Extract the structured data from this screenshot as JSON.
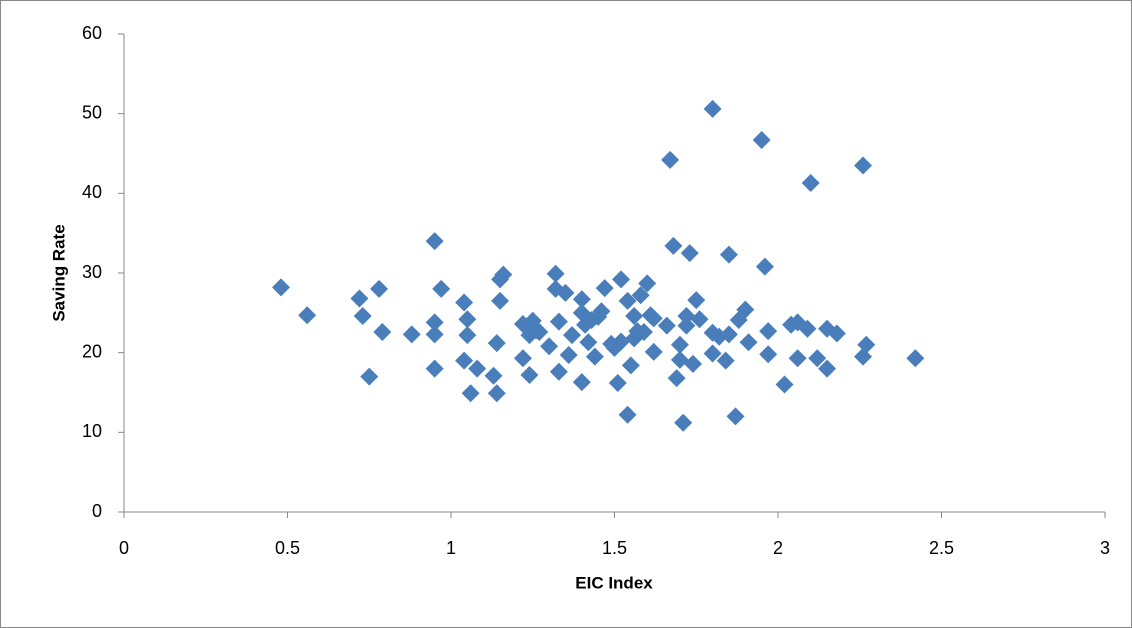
{
  "chart_data": {
    "type": "scatter",
    "x_label": "EIC Index",
    "y_label": "Saving Rate",
    "color": "#4a7ebb",
    "marker": "diamond",
    "grid": false,
    "xlim": [
      0,
      3
    ],
    "xticks": [
      0,
      0.5,
      1,
      1.5,
      2,
      2.5,
      3
    ],
    "ylim": [
      0,
      60
    ],
    "yticks": [
      0,
      10,
      20,
      30,
      40,
      50,
      60
    ],
    "x": [
      0.48,
      0.56,
      0.72,
      0.73,
      0.75,
      0.78,
      0.79,
      0.88,
      0.95,
      0.95,
      0.95,
      0.95,
      0.97,
      1.04,
      1.04,
      1.05,
      1.05,
      1.06,
      1.08,
      1.13,
      1.14,
      1.14,
      1.15,
      1.15,
      1.16,
      1.22,
      1.22,
      1.24,
      1.24,
      1.25,
      1.26,
      1.27,
      1.3,
      1.32,
      1.32,
      1.33,
      1.33,
      1.35,
      1.36,
      1.37,
      1.4,
      1.4,
      1.4,
      1.41,
      1.42,
      1.43,
      1.44,
      1.45,
      1.46,
      1.47,
      1.49,
      1.5,
      1.52,
      1.51,
      1.52,
      1.54,
      1.54,
      1.55,
      1.56,
      1.56,
      1.57,
      1.58,
      1.59,
      1.6,
      1.61,
      1.62,
      1.62,
      1.66,
      1.67,
      1.68,
      1.69,
      1.7,
      1.7,
      1.71,
      1.72,
      1.72,
      1.73,
      1.74,
      1.75,
      1.76,
      1.8,
      1.8,
      1.8,
      1.82,
      1.84,
      1.85,
      1.85,
      1.87,
      1.88,
      1.9,
      1.91,
      1.95,
      1.96,
      1.97,
      1.97,
      2.02,
      2.04,
      2.06,
      2.06,
      2.09,
      2.1,
      2.12,
      2.15,
      2.15,
      2.18,
      2.26,
      2.26,
      2.27,
      2.42
    ],
    "values": [
      28.2,
      24.7,
      26.8,
      24.6,
      17,
      28,
      22.6,
      22.3,
      34,
      23.8,
      22.3,
      18,
      28,
      26.3,
      19,
      24.2,
      22.2,
      14.9,
      18,
      17.1,
      14.9,
      21.2,
      29.2,
      26.5,
      29.8,
      23.6,
      19.3,
      22.2,
      17.2,
      24,
      22.8,
      22.6,
      20.8,
      29.9,
      28,
      23.9,
      17.6,
      27.5,
      19.7,
      22.2,
      26.7,
      25,
      16.3,
      23.5,
      21.3,
      24.1,
      19.5,
      24.5,
      25.2,
      28.1,
      21.1,
      20.6,
      29.2,
      16.2,
      21.4,
      12.2,
      26.5,
      18.4,
      21.8,
      24.6,
      22.7,
      27.2,
      22.6,
      28.7,
      24.7,
      20.1,
      24.3,
      23.4,
      44.2,
      33.4,
      16.8,
      21,
      19.1,
      11.2,
      23.4,
      24.6,
      32.5,
      18.6,
      26.6,
      24.2,
      50.6,
      22.5,
      19.9,
      22,
      19,
      32.3,
      22.3,
      12,
      24.1,
      25.4,
      21.3,
      46.7,
      30.8,
      19.8,
      22.7,
      16,
      23.5,
      23.8,
      19.3,
      23,
      41.3,
      19.3,
      18,
      23,
      22.4,
      43.5,
      19.5,
      21,
      19.3
    ]
  }
}
